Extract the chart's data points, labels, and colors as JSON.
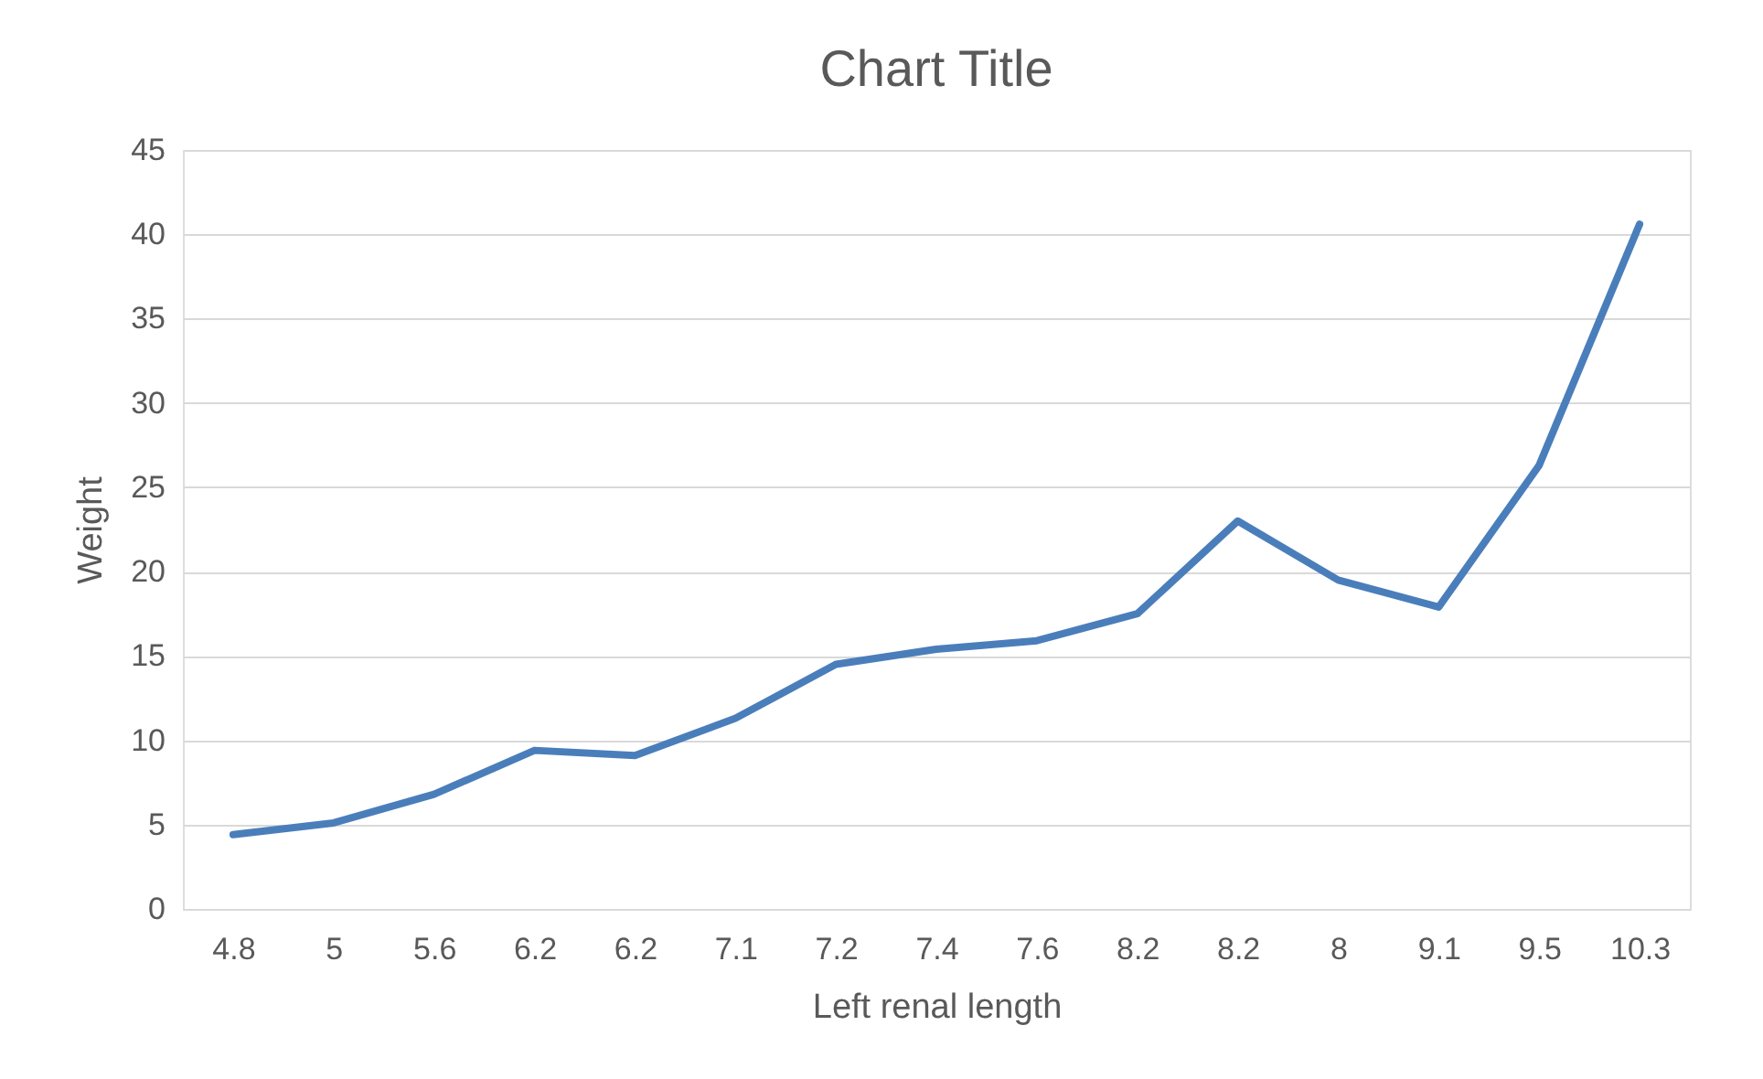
{
  "chart_data": {
    "type": "line",
    "title": "Chart Title",
    "xlabel": "Left renal length",
    "ylabel": "Weight",
    "categories": [
      "4.8",
      "5",
      "5.6",
      "6.2",
      "6.2",
      "7.1",
      "7.2",
      "7.4",
      "7.6",
      "8.2",
      "8.2",
      "8",
      "9.1",
      "9.5",
      "10.3"
    ],
    "series": [
      {
        "color": "#4a7ebb",
        "values": [
          4.4,
          5.1,
          6.8,
          9.4,
          9.1,
          11.3,
          14.5,
          15.4,
          15.9,
          17.5,
          23.0,
          19.5,
          17.9,
          26.3,
          40.6
        ]
      }
    ],
    "ylim": [
      0,
      45
    ],
    "yticks": [
      0,
      5,
      10,
      15,
      20,
      25,
      30,
      35,
      40,
      45
    ],
    "grid": "y",
    "marker": "none",
    "line_style": "solid"
  }
}
